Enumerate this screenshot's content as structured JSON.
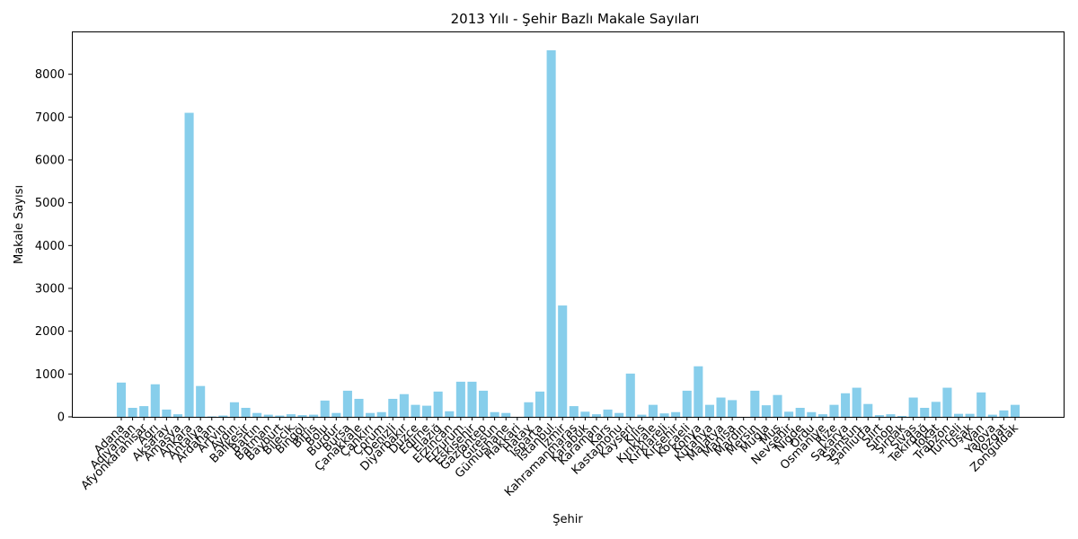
{
  "chart_data": {
    "type": "bar",
    "title": "2013 Yılı - Şehir Bazlı Makale Sayıları",
    "xlabel": "Şehir",
    "ylabel": "Makale Sayısı",
    "ylim": [
      0,
      9000
    ],
    "yticks": [
      0,
      1000,
      2000,
      3000,
      4000,
      5000,
      6000,
      7000,
      8000
    ],
    "grid": false,
    "bar_color": "#87CEEB",
    "categories": [
      "Adana",
      "Adıyaman",
      "Afyonkarahisar",
      "Ağrı",
      "Aksaray",
      "Amasya",
      "Ankara",
      "Antalya",
      "Ardahan",
      "Artvin",
      "Aydın",
      "Balıkesir",
      "Bartın",
      "Batman",
      "Bayburt",
      "Bilecik",
      "Bingöl",
      "Bitlis",
      "Bolu",
      "Burdur",
      "Bursa",
      "Çanakkale",
      "Çankırı",
      "Çorum",
      "Denizli",
      "Diyarbakır",
      "Düzce",
      "Edirne",
      "Elazığ",
      "Erzincan",
      "Erzurum",
      "Eskişehir",
      "Gaziantep",
      "Giresun",
      "Gümüşhane",
      "Hakkari",
      "Hatay",
      "Isparta",
      "İstanbul",
      "İzmir",
      "Kahramanmaraş",
      "Karabük",
      "Karaman",
      "Kars",
      "Kastamonu",
      "Kayseri",
      "Kilis",
      "Kırıkkale",
      "Kırklareli",
      "Kırşehir",
      "Kocaeli",
      "Konya",
      "Kütahya",
      "Malatya",
      "Manisa",
      "Mardin",
      "Mersin",
      "Muğla",
      "Muş",
      "Nevşehir",
      "Niğde",
      "Ordu",
      "Osmaniye",
      "Rize",
      "Sakarya",
      "Samsun",
      "Şanlıurfa",
      "Siirt",
      "Sinop",
      "Şırnak",
      "Sivas",
      "Tekirdağ",
      "Tokat",
      "Trabzon",
      "Tunceli",
      "Uşak",
      "Van",
      "Yalova",
      "Yozgat",
      "Zonguldak"
    ],
    "values": [
      800,
      210,
      250,
      760,
      170,
      60,
      7100,
      720,
      10,
      30,
      340,
      210,
      90,
      50,
      30,
      60,
      40,
      50,
      380,
      90,
      610,
      420,
      90,
      110,
      420,
      530,
      280,
      260,
      590,
      130,
      820,
      820,
      610,
      110,
      90,
      0,
      340,
      590,
      8560,
      2600,
      250,
      120,
      60,
      170,
      90,
      1010,
      50,
      280,
      80,
      110,
      610,
      1180,
      280,
      450,
      390,
      0,
      610,
      270,
      510,
      120,
      210,
      110,
      60,
      280,
      550,
      680,
      300,
      40,
      60,
      20,
      450,
      210,
      350,
      680,
      70,
      70,
      570,
      50,
      150,
      280
    ]
  }
}
